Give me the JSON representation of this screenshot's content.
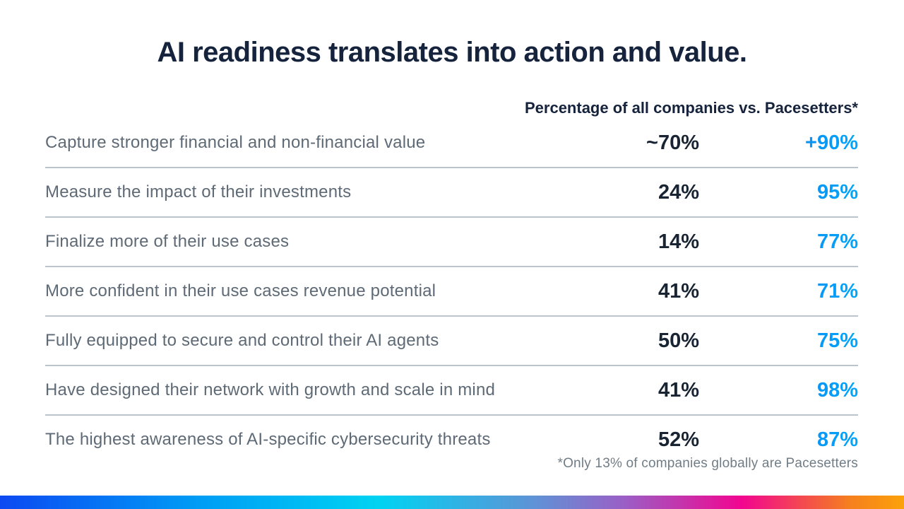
{
  "title": "AI readiness translates into action and value.",
  "table": {
    "header": "Percentage of all companies vs. Pacesetters*",
    "rows": [
      {
        "label": "Capture stronger financial and non-financial value",
        "all": "~70%",
        "pacesetters": "+90%"
      },
      {
        "label": "Measure the impact of their investments",
        "all": "24%",
        "pacesetters": "95%"
      },
      {
        "label": "Finalize more of their use cases",
        "all": "14%",
        "pacesetters": "77%"
      },
      {
        "label": "More confident in their use cases revenue potential",
        "all": "41%",
        "pacesetters": "71%"
      },
      {
        "label": "Fully equipped to secure and control their AI agents",
        "all": "50%",
        "pacesetters": "75%"
      },
      {
        "label": "Have designed their network with growth and scale in mind",
        "all": "41%",
        "pacesetters": "98%"
      },
      {
        "label": "The highest awareness of AI-specific cybersecurity threats",
        "all": "52%",
        "pacesetters": "87%"
      }
    ],
    "footnote": "*Only 13% of companies globally are Pacesetters"
  },
  "colors": {
    "title_text": "#16233c",
    "value_dark": "#192433",
    "value_blue_gradient_start": "#1c6ce6",
    "value_blue_gradient_end": "#00a6fb",
    "label_gray": "#5e6a76",
    "divider_gray": "#bcc3cb",
    "footnote_gray": "#717d86",
    "bottom_bar_gradient": [
      "#0c49f2",
      "#009df5",
      "#00d3f2",
      "#5e93d6",
      "#9a5fc6",
      "#f20590",
      "#f57f1e",
      "#fca20a"
    ]
  },
  "chart_data": {
    "type": "table",
    "title": "AI readiness translates into action and value.",
    "column_header": "Percentage of all companies vs. Pacesetters*",
    "categories": [
      "Capture stronger financial and non-financial value",
      "Measure the impact of their investments",
      "Finalize more of their use cases",
      "More confident in their use cases revenue potential",
      "Fully equipped to secure and control their AI agents",
      "Have designed their network with growth and scale in mind",
      "The highest awareness of AI-specific cybersecurity threats"
    ],
    "series": [
      {
        "name": "All companies",
        "values": [
          "~70%",
          "24%",
          "14%",
          "41%",
          "50%",
          "41%",
          "52%"
        ]
      },
      {
        "name": "Pacesetters",
        "values": [
          "+90%",
          "95%",
          "77%",
          "71%",
          "75%",
          "98%",
          "87%"
        ]
      }
    ],
    "footnote": "*Only 13% of companies globally are Pacesetters",
    "legend_position": "none",
    "grid": "horizontal-dividers-only"
  }
}
